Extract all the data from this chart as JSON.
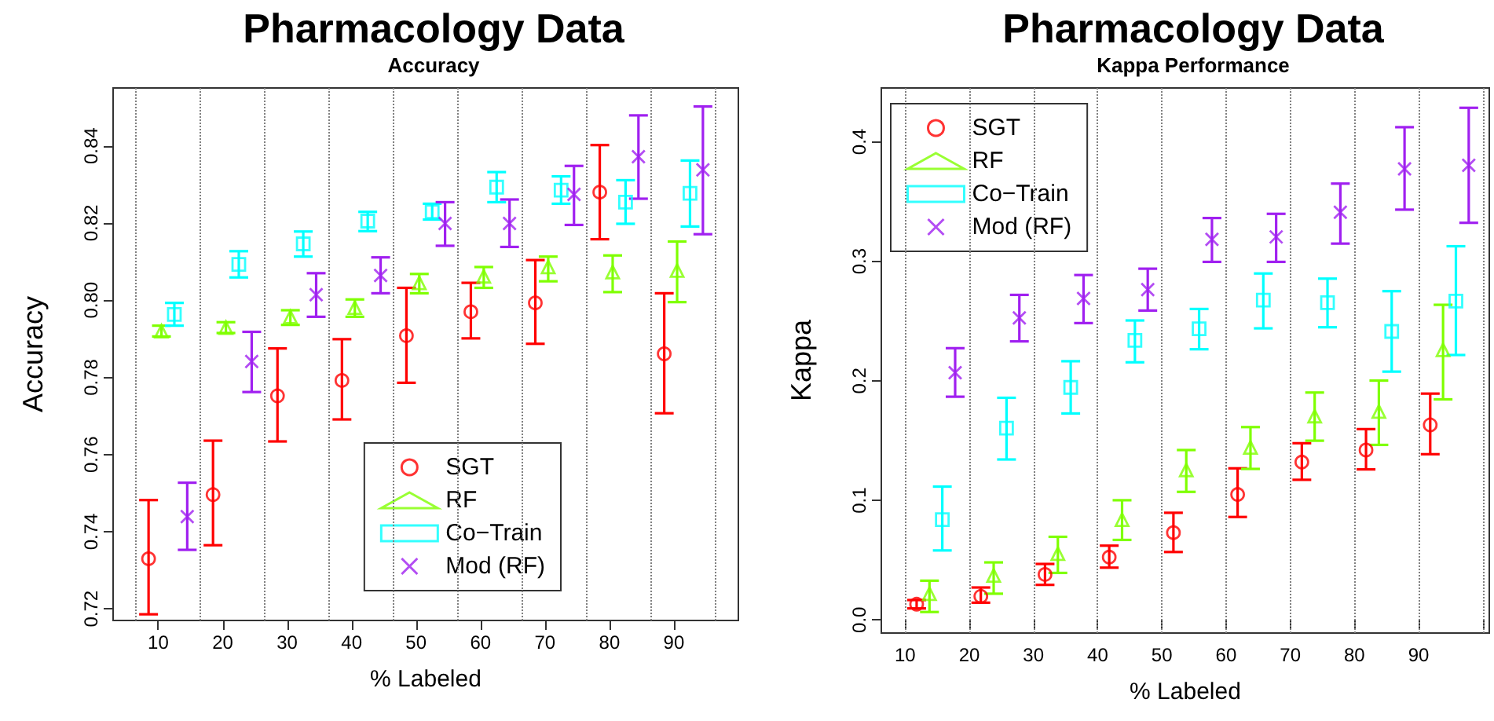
{
  "chart_data": [
    {
      "type": "scatter",
      "title": "Pharmacology Data",
      "subtitle": "Accuracy",
      "xlabel": "% Labeled",
      "ylabel": "Accuracy",
      "xlim": [
        3,
        100
      ],
      "xticks": [
        10,
        20,
        30,
        40,
        50,
        60,
        70,
        80,
        90
      ],
      "ylim": [
        0.717,
        0.855
      ],
      "yticks": [
        0.72,
        0.74,
        0.76,
        0.78,
        {
          "value": 0.8,
          "label": "0.80"
        },
        0.82,
        0.84
      ],
      "legend": "bottom right",
      "ref_lines": [
        {
          "axis": "x",
          "value": 6.5,
          "color": "#808080",
          "line_style": "dotted"
        },
        {
          "axis": "x",
          "value": 16.5,
          "color": "#808080",
          "line_style": "dotted"
        },
        {
          "axis": "x",
          "value": 26.5,
          "color": "#808080",
          "line_style": "dotted"
        },
        {
          "axis": "x",
          "value": 36.5,
          "color": "#808080",
          "line_style": "dotted"
        },
        {
          "axis": "x",
          "value": 46.5,
          "color": "#808080",
          "line_style": "dotted"
        },
        {
          "axis": "x",
          "value": 56.5,
          "color": "#808080",
          "line_style": "dotted"
        },
        {
          "axis": "x",
          "value": 66.5,
          "color": "#808080",
          "line_style": "dotted"
        },
        {
          "axis": "x",
          "value": 76.5,
          "color": "#808080",
          "line_style": "dotted"
        },
        {
          "axis": "x",
          "value": 86.5,
          "color": "#808080",
          "line_style": "dotted"
        },
        {
          "axis": "x",
          "value": 96.5,
          "color": "#808080",
          "line_style": "dotted"
        }
      ],
      "series": [
        {
          "name": "SGT",
          "color": "#ff0000",
          "marker": "circle",
          "x": [
            8.5,
            18.5,
            28.5,
            38.5,
            48.5,
            58.5,
            68.5,
            78.5,
            88.5
          ],
          "values": [
            0.733,
            0.7496,
            0.7752,
            0.7792,
            0.7908,
            0.797,
            0.7993,
            0.828,
            0.7861
          ],
          "errors": [
            [
              0.7186,
              0.7482
            ],
            [
              0.7365,
              0.7636
            ],
            [
              0.7634,
              0.7875
            ],
            [
              0.7691,
              0.7899
            ],
            [
              0.7786,
              0.8032
            ],
            [
              0.7901,
              0.8045
            ],
            [
              0.7887,
              0.8104
            ],
            [
              0.8158,
              0.8402
            ],
            [
              0.7707,
              0.8018
            ]
          ]
        },
        {
          "name": "RF",
          "color": "#7fff00",
          "marker": "triangle",
          "x": [
            10.5,
            20.5,
            30.5,
            40.5,
            50.5,
            60.5,
            70.5,
            80.5,
            90.5
          ],
          "values": [
            0.792,
            0.7929,
            0.7957,
            0.7981,
            0.8045,
            0.8062,
            0.8086,
            0.8073,
            0.8077
          ],
          "errors": [
            [
              0.7906,
              0.7934
            ],
            [
              0.7915,
              0.7943
            ],
            [
              0.7936,
              0.7974
            ],
            [
              0.7957,
              0.8002
            ],
            [
              0.8018,
              0.8068
            ],
            [
              0.8032,
              0.8086
            ],
            [
              0.8049,
              0.8113
            ],
            [
              0.8021,
              0.8116
            ],
            [
              0.7995,
              0.8152
            ]
          ]
        },
        {
          "name": "Co−Train",
          "color": "#00ffff",
          "marker": "square",
          "x": [
            12.5,
            22.5,
            32.5,
            42.5,
            52.5,
            62.5,
            72.5,
            82.5,
            92.5
          ],
          "values": [
            0.7963,
            0.8093,
            0.8146,
            0.8205,
            0.8229,
            0.8293,
            0.8285,
            0.8254,
            0.8277
          ],
          "errors": [
            [
              0.7934,
              0.7993
            ],
            [
              0.8059,
              0.8127
            ],
            [
              0.8113,
              0.8178
            ],
            [
              0.8179,
              0.8229
            ],
            [
              0.8209,
              0.825
            ],
            [
              0.8254,
              0.8332
            ],
            [
              0.825,
              0.8321
            ],
            [
              0.8198,
              0.8311
            ],
            [
              0.8191,
              0.8362
            ]
          ]
        },
        {
          "name": "Mod (RF)",
          "color": "#a020f0",
          "marker": "cross",
          "x": [
            14.5,
            24.5,
            34.5,
            44.5,
            54.5,
            64.5,
            74.5,
            84.5,
            94.5
          ],
          "values": [
            0.7439,
            0.7841,
            0.8014,
            0.8064,
            0.8199,
            0.8199,
            0.8274,
            0.8372,
            0.8338
          ],
          "errors": [
            [
              0.7353,
              0.7527
            ],
            [
              0.7762,
              0.7918
            ],
            [
              0.7957,
              0.807
            ],
            [
              0.8018,
              0.8111
            ],
            [
              0.8141,
              0.8254
            ],
            [
              0.8138,
              0.8261
            ],
            [
              0.8195,
              0.8348
            ],
            [
              0.8263,
              0.8479
            ],
            [
              0.8171,
              0.8502
            ]
          ]
        }
      ]
    },
    {
      "type": "scatter",
      "title": "Pharmacology Data",
      "subtitle": "Kappa Performance",
      "xlabel": "% Labeled",
      "ylabel": "Kappa",
      "xlim": [
        6.3,
        101
      ],
      "xticks": [
        10,
        20,
        30,
        40,
        50,
        60,
        70,
        80,
        90,
        {
          "value": 100,
          "label": null
        }
      ],
      "ylim": [
        -0.011,
        0.445
      ],
      "yticks": [
        {
          "value": 0,
          "label": "0.0"
        },
        0.1,
        0.2,
        0.3,
        0.4
      ],
      "grid": "x",
      "legend": "top left",
      "series": [
        {
          "name": "SGT",
          "color": "#ff0000",
          "marker": "circle",
          "x": [
            11.8,
            21.8,
            31.8,
            41.8,
            51.8,
            61.8,
            71.8,
            81.8,
            91.8
          ],
          "values": [
            0.0131,
            0.0197,
            0.038,
            0.0525,
            0.073,
            0.1049,
            0.132,
            0.1421,
            0.1631
          ],
          "errors": [
            [
              0.0096,
              0.0166
            ],
            [
              0.0144,
              0.0271
            ],
            [
              0.0293,
              0.0468
            ],
            [
              0.0437,
              0.0621
            ],
            [
              0.0568,
              0.0896
            ],
            [
              0.0861,
              0.1268
            ],
            [
              0.1172,
              0.1478
            ],
            [
              0.1259,
              0.1596
            ],
            [
              0.1386,
              0.1893
            ]
          ]
        },
        {
          "name": "RF",
          "color": "#7fff00",
          "marker": "triangle",
          "x": [
            13.8,
            23.8,
            33.8,
            43.8,
            53.8,
            63.8,
            73.8,
            83.8,
            93.8
          ],
          "values": [
            0.0219,
            0.0372,
            0.0555,
            0.0839,
            0.1255,
            0.1443,
            0.1705,
            0.1744,
            0.226
          ],
          "errors": [
            [
              0.0066,
              0.0328
            ],
            [
              0.0219,
              0.0481
            ],
            [
              0.0393,
              0.0695
            ],
            [
              0.0669,
              0.1001
            ],
            [
              0.1071,
              0.1421
            ],
            [
              0.1263,
              0.1613
            ],
            [
              0.1499,
              0.1902
            ],
            [
              0.1464,
              0.2002
            ],
            [
              0.1845,
              0.2636
            ]
          ]
        },
        {
          "name": "Co−Train",
          "color": "#00ffff",
          "marker": "square",
          "x": [
            15.8,
            25.8,
            35.8,
            45.8,
            55.8,
            65.8,
            75.8,
            85.8,
            95.8
          ],
          "values": [
            0.0839,
            0.1604,
            0.1945,
            0.2339,
            0.2435,
            0.2675,
            0.2654,
            0.2413,
            0.2667
          ],
          "errors": [
            [
              0.0581,
              0.1115
            ],
            [
              0.1342,
              0.1858
            ],
            [
              0.1727,
              0.2164
            ],
            [
              0.2155,
              0.2505
            ],
            [
              0.2264,
              0.2601
            ],
            [
              0.2439,
              0.2898
            ],
            [
              0.2448,
              0.2855
            ],
            [
              0.2077,
              0.275
            ],
            [
              0.2216,
              0.3126
            ]
          ]
        },
        {
          "name": "Mod (RF)",
          "color": "#a020f0",
          "marker": "cross",
          "x": [
            17.8,
            27.8,
            37.8,
            47.8,
            57.8,
            67.8,
            77.8,
            87.8,
            97.8
          ],
          "values": [
            0.2068,
            0.2527,
            0.2689,
            0.2763,
            0.3183,
            0.3204,
            0.341,
            0.3773,
            0.3803
          ],
          "errors": [
            [
              0.1867,
              0.2273
            ],
            [
              0.233,
              0.2719
            ],
            [
              0.2483,
              0.2885
            ],
            [
              0.2588,
              0.2938
            ],
            [
              0.2995,
              0.3362
            ],
            [
              0.2995,
              0.3397
            ],
            [
              0.3148,
              0.365
            ],
            [
              0.3432,
              0.4122
            ],
            [
              0.3322,
              0.4284
            ]
          ]
        }
      ]
    }
  ]
}
